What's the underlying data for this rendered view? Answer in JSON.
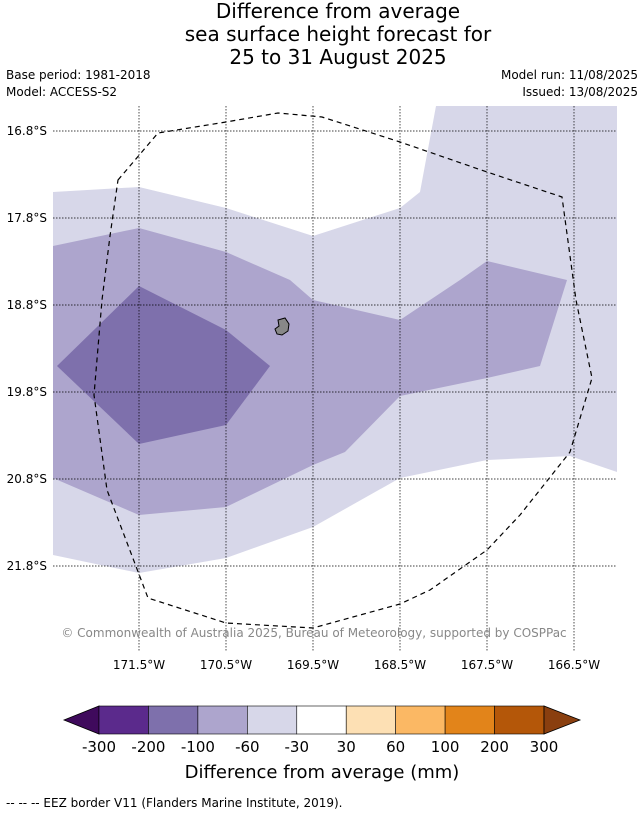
{
  "title": {
    "line1": "Difference from average",
    "line2": "sea surface height forecast for",
    "line3": "25 to 31 August 2025"
  },
  "meta": {
    "base_period": "Base period: 1981-2018",
    "model": "Model: ACCESS-S2",
    "model_run": "Model run: 11/08/2025",
    "issued": "Issued: 13/08/2025"
  },
  "map": {
    "lat_labels": [
      "16.8°S",
      "17.8°S",
      "18.8°S",
      "19.8°S",
      "20.8°S",
      "21.8°S"
    ],
    "lon_labels": [
      "171.5°W",
      "170.5°W",
      "169.5°W",
      "168.5°W",
      "167.5°W",
      "166.5°W"
    ],
    "copyright": "© Commonwealth of Australia 2025, Bureau of Meteorology, supported by COSPPac",
    "island_color": "#888888",
    "eez_line_style": "dashed"
  },
  "colorbar": {
    "title": "Difference from average (mm)",
    "ticks": [
      "-300",
      "-200",
      "-100",
      "-60",
      "-30",
      "30",
      "60",
      "100",
      "200",
      "300"
    ],
    "colors": [
      "#3f0a5c",
      "#5b2a8c",
      "#7e70ac",
      "#ada5cd",
      "#d7d7e9",
      "#ffffff",
      "#fde0b4",
      "#fbb864",
      "#e2841a",
      "#b45709",
      "#8a3f0f"
    ]
  },
  "footnote": "--  --  -- EEZ border V11 (Flanders Marine Institute, 2019)."
}
